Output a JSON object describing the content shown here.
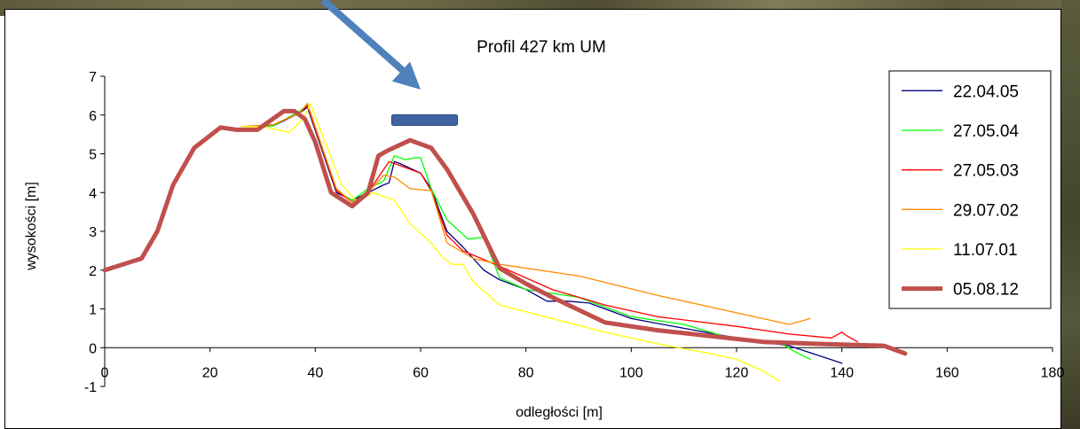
{
  "chart_data": {
    "type": "line",
    "title": "Profil 427 km  UM",
    "xlabel": "odległości [m]",
    "ylabel": "wysokości [m]",
    "xlim": [
      0,
      180
    ],
    "ylim": [
      -1,
      7
    ],
    "x_ticks": [
      "0",
      "20",
      "40",
      "60",
      "80",
      "100",
      "120",
      "140",
      "160",
      "180"
    ],
    "y_ticks": [
      "-1",
      "0",
      "1",
      "2",
      "3",
      "4",
      "5",
      "6",
      "7"
    ],
    "grid": false,
    "legend_position": "right",
    "series": [
      {
        "name": "22.04.05",
        "color": "#000080",
        "width": 1.3,
        "points": [
          [
            26,
            5.7
          ],
          [
            32,
            5.72
          ],
          [
            37,
            6.05
          ],
          [
            38.5,
            6.2
          ],
          [
            40,
            5.6
          ],
          [
            44,
            4.0
          ],
          [
            47,
            3.8
          ],
          [
            50,
            4.0
          ],
          [
            53,
            4.2
          ],
          [
            54,
            4.25
          ],
          [
            55,
            4.8
          ],
          [
            56,
            4.75
          ],
          [
            60,
            4.5
          ],
          [
            62,
            4.1
          ],
          [
            65,
            3.0
          ],
          [
            68,
            2.6
          ],
          [
            72,
            2.0
          ],
          [
            75,
            1.75
          ],
          [
            80,
            1.5
          ],
          [
            84,
            1.2
          ],
          [
            88,
            1.2
          ],
          [
            92,
            1.15
          ],
          [
            100,
            0.75
          ],
          [
            110,
            0.5
          ],
          [
            120,
            0.25
          ],
          [
            130,
            0.05
          ],
          [
            140,
            -0.4
          ]
        ]
      },
      {
        "name": "27.05.04",
        "color": "#00ff00",
        "width": 1.3,
        "points": [
          [
            26,
            5.7
          ],
          [
            32,
            5.72
          ],
          [
            37,
            6.1
          ],
          [
            38.5,
            6.25
          ],
          [
            40,
            5.65
          ],
          [
            44,
            4.05
          ],
          [
            47,
            3.8
          ],
          [
            50,
            4.1
          ],
          [
            53,
            4.3
          ],
          [
            55,
            4.95
          ],
          [
            57,
            4.85
          ],
          [
            59,
            4.9
          ],
          [
            60,
            4.9
          ],
          [
            62,
            4.1
          ],
          [
            65,
            3.3
          ],
          [
            69,
            2.8
          ],
          [
            72,
            2.85
          ],
          [
            75,
            1.8
          ],
          [
            80,
            1.5
          ],
          [
            85,
            1.4
          ],
          [
            90,
            1.3
          ],
          [
            100,
            0.8
          ],
          [
            110,
            0.6
          ],
          [
            120,
            0.2
          ],
          [
            128,
            0.15
          ],
          [
            131,
            -0.1
          ],
          [
            134,
            -0.3
          ]
        ]
      },
      {
        "name": "27.05.03",
        "color": "#ff0000",
        "width": 1.3,
        "points": [
          [
            26,
            5.7
          ],
          [
            32,
            5.75
          ],
          [
            37,
            6.05
          ],
          [
            38.5,
            6.25
          ],
          [
            40,
            5.65
          ],
          [
            44,
            4.05
          ],
          [
            47,
            3.75
          ],
          [
            50,
            4.0
          ],
          [
            53,
            4.6
          ],
          [
            54,
            4.8
          ],
          [
            55,
            4.75
          ],
          [
            60,
            4.5
          ],
          [
            62,
            4.05
          ],
          [
            65,
            2.9
          ],
          [
            68,
            2.5
          ],
          [
            75,
            2.1
          ],
          [
            80,
            1.8
          ],
          [
            85,
            1.5
          ],
          [
            95,
            1.1
          ],
          [
            105,
            0.8
          ],
          [
            120,
            0.55
          ],
          [
            130,
            0.35
          ],
          [
            138,
            0.25
          ],
          [
            140,
            0.4
          ],
          [
            141,
            0.3
          ],
          [
            143,
            0.15
          ]
        ]
      },
      {
        "name": "29.07.02",
        "color": "#ff8c00",
        "width": 1.3,
        "points": [
          [
            26,
            5.7
          ],
          [
            32,
            5.75
          ],
          [
            37,
            6.05
          ],
          [
            38.5,
            6.3
          ],
          [
            40,
            5.7
          ],
          [
            44,
            4.1
          ],
          [
            47,
            3.75
          ],
          [
            50,
            4.0
          ],
          [
            53,
            4.45
          ],
          [
            55,
            4.4
          ],
          [
            58,
            4.1
          ],
          [
            62,
            4.05
          ],
          [
            65,
            2.7
          ],
          [
            70,
            2.3
          ],
          [
            75,
            2.15
          ],
          [
            90,
            1.85
          ],
          [
            105,
            1.35
          ],
          [
            120,
            0.9
          ],
          [
            130,
            0.6
          ],
          [
            134,
            0.75
          ]
        ]
      },
      {
        "name": "11.07.01",
        "color": "#ffff00",
        "width": 1.3,
        "points": [
          [
            26,
            5.7
          ],
          [
            30,
            5.7
          ],
          [
            35,
            5.55
          ],
          [
            38,
            5.95
          ],
          [
            39,
            6.3
          ],
          [
            41,
            5.6
          ],
          [
            45,
            4.2
          ],
          [
            48,
            3.75
          ],
          [
            51,
            4.0
          ],
          [
            53,
            3.9
          ],
          [
            55,
            3.8
          ],
          [
            58,
            3.2
          ],
          [
            62,
            2.7
          ],
          [
            64,
            2.35
          ],
          [
            66,
            2.15
          ],
          [
            68,
            2.15
          ],
          [
            70,
            1.7
          ],
          [
            75,
            1.1
          ],
          [
            85,
            0.75
          ],
          [
            95,
            0.4
          ],
          [
            105,
            0.1
          ],
          [
            115,
            -0.15
          ],
          [
            120,
            -0.3
          ],
          [
            125,
            -0.6
          ],
          [
            128,
            -0.85
          ]
        ]
      },
      {
        "name": "05.08.12",
        "color": "#c0504d",
        "width": 5,
        "points": [
          [
            0,
            2.0
          ],
          [
            7,
            2.3
          ],
          [
            10,
            3.0
          ],
          [
            13,
            4.2
          ],
          [
            17,
            5.15
          ],
          [
            22,
            5.68
          ],
          [
            25,
            5.62
          ],
          [
            29,
            5.62
          ],
          [
            34,
            6.1
          ],
          [
            36,
            6.1
          ],
          [
            38,
            5.9
          ],
          [
            40,
            5.3
          ],
          [
            43,
            4.0
          ],
          [
            47,
            3.65
          ],
          [
            50,
            4.0
          ],
          [
            52,
            4.95
          ],
          [
            54,
            5.1
          ],
          [
            58,
            5.35
          ],
          [
            62,
            5.15
          ],
          [
            65,
            4.6
          ],
          [
            70,
            3.45
          ],
          [
            75,
            2.05
          ],
          [
            80,
            1.65
          ],
          [
            85,
            1.3
          ],
          [
            95,
            0.65
          ],
          [
            105,
            0.45
          ],
          [
            115,
            0.3
          ],
          [
            125,
            0.15
          ],
          [
            135,
            0.1
          ],
          [
            148,
            0.05
          ],
          [
            152,
            -0.15
          ]
        ]
      }
    ],
    "annotations": [
      {
        "type": "bar-marker",
        "x_range": [
          54.5,
          67
        ],
        "y": 5.87,
        "color": "#3f64a0"
      },
      {
        "type": "arrow",
        "color": "#4f81bd",
        "points_to": [
          60,
          6.75
        ]
      }
    ]
  }
}
